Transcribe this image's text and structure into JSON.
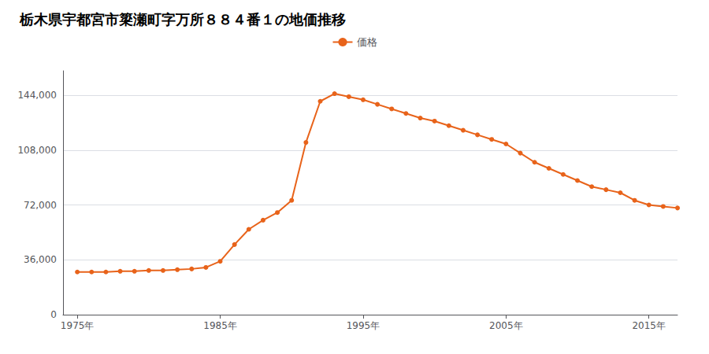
{
  "chart_data": {
    "type": "line",
    "title": "栃木県宇都宮市簗瀬町字万所８８４番１の地価推移",
    "x": [
      1975,
      1976,
      1977,
      1978,
      1979,
      1980,
      1981,
      1982,
      1983,
      1984,
      1985,
      1986,
      1987,
      1988,
      1989,
      1990,
      1991,
      1992,
      1993,
      1994,
      1995,
      1996,
      1997,
      1998,
      1999,
      2000,
      2001,
      2002,
      2003,
      2004,
      2005,
      2006,
      2007,
      2008,
      2009,
      2010,
      2011,
      2012,
      2013,
      2014,
      2015,
      2016,
      2017
    ],
    "series": [
      {
        "name": "価格",
        "color": "#E8631A",
        "values": [
          28000,
          28000,
          28000,
          28500,
          28500,
          29000,
          29000,
          29500,
          30000,
          31000,
          35000,
          46000,
          56000,
          62000,
          67000,
          75000,
          113000,
          140000,
          145000,
          143000,
          141000,
          138000,
          135000,
          132000,
          129000,
          127000,
          124000,
          121000,
          118000,
          115000,
          112000,
          106000,
          100000,
          96000,
          92000,
          88000,
          84000,
          82000,
          80000,
          75000,
          72000,
          71000,
          70000
        ]
      }
    ],
    "xlim": [
      1974,
      2017
    ],
    "xticks": [
      {
        "value": 1975,
        "label": "1975年"
      },
      {
        "value": 1985,
        "label": "1985年"
      },
      {
        "value": 1995,
        "label": "1995年"
      },
      {
        "value": 2005,
        "label": "2005年"
      },
      {
        "value": 2015,
        "label": "2015年"
      }
    ],
    "ylim": [
      0,
      160000
    ],
    "yticks": [
      0,
      {
        "value": 36000,
        "label": "36,000"
      },
      {
        "value": 72000,
        "label": "72,000"
      },
      {
        "value": 108000,
        "label": "108,000"
      },
      {
        "value": 144000,
        "label": "144,000"
      }
    ],
    "grid": true,
    "legend": "top",
    "marker": "circle"
  }
}
